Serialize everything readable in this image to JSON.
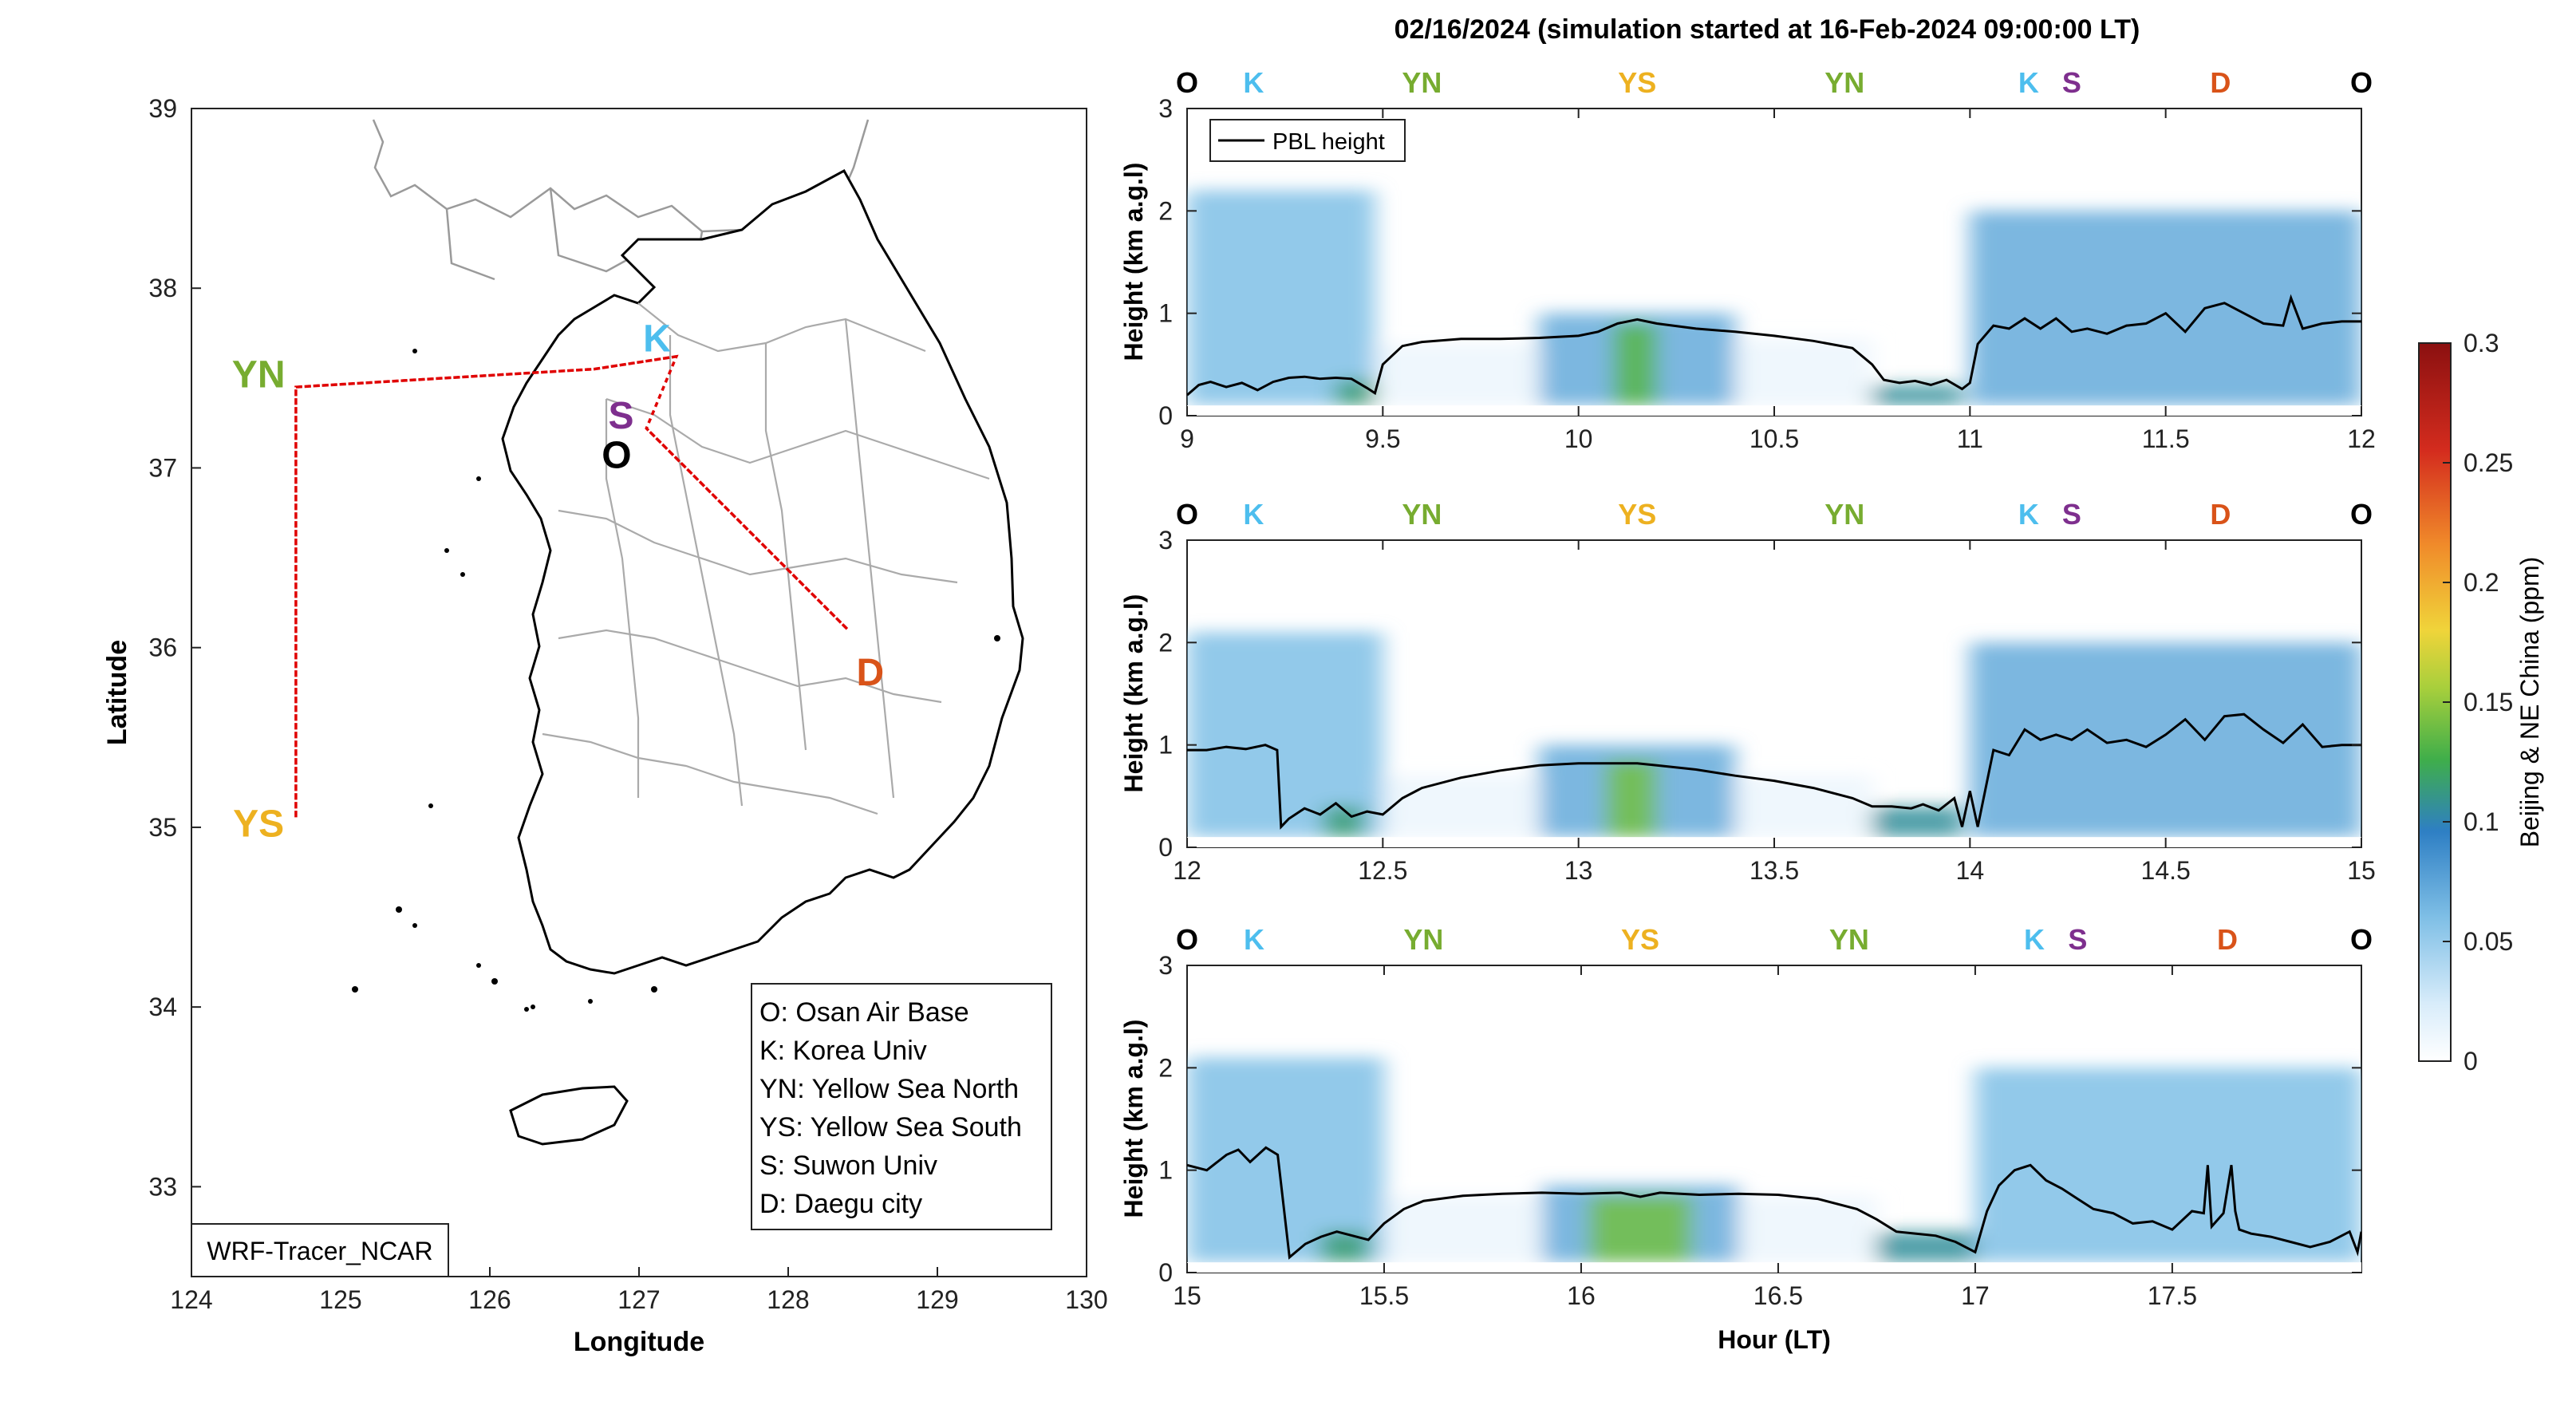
{
  "figure_title": "02/16/2024 (simulation started at 16-Feb-2024 09:00:00 LT)",
  "colors": {
    "O": "#000000",
    "K": "#4DBEEE",
    "YN": "#77AC30",
    "YS": "#EDB120",
    "S": "#7E2F8E",
    "D": "#D95319",
    "track": "#E00000"
  },
  "chart_data": [
    {
      "type": "map",
      "xlabel": "Longitude",
      "ylabel": "Latitude",
      "xlim": [
        124,
        130
      ],
      "ylim": [
        32.5,
        39
      ],
      "xticks": [
        124,
        125,
        126,
        127,
        128,
        129,
        130
      ],
      "yticks": [
        33,
        34,
        35,
        36,
        37,
        38,
        39
      ],
      "watermark": "WRF-Tracer_NCAR",
      "sites": [
        {
          "code": "O",
          "lon": 126.85,
          "lat": 37.07
        },
        {
          "code": "K",
          "lon": 127.12,
          "lat": 37.72
        },
        {
          "code": "S",
          "lon": 126.88,
          "lat": 37.29
        },
        {
          "code": "YN",
          "lon": 124.45,
          "lat": 37.52
        },
        {
          "code": "YS",
          "lon": 124.45,
          "lat": 35.02
        },
        {
          "code": "D",
          "lon": 128.55,
          "lat": 35.86
        }
      ],
      "flight_track": [
        {
          "lon": 127.25,
          "lat": 37.62
        },
        {
          "lon": 126.7,
          "lat": 37.55
        },
        {
          "lon": 124.7,
          "lat": 37.45
        },
        {
          "lon": 124.7,
          "lat": 35.05
        },
        {
          "lon": 124.7,
          "lat": 37.45
        },
        {
          "lon": 126.7,
          "lat": 37.55
        },
        {
          "lon": 127.25,
          "lat": 37.62
        },
        {
          "lon": 127.05,
          "lat": 37.22
        },
        {
          "lon": 128.4,
          "lat": 36.1
        },
        {
          "lon": 127.05,
          "lat": 37.22
        }
      ],
      "legend": [
        "O: Osan Air Base",
        "K: Korea Univ",
        "YN: Yellow Sea North",
        "YS: Yellow Sea South",
        "S: Suwon Univ",
        "D: Daegu city"
      ]
    },
    {
      "type": "heatmap",
      "xlabel": "",
      "ylabel": "Height (km a.g.l)",
      "xlim": [
        9,
        12
      ],
      "ylim": [
        0,
        3
      ],
      "xticks": [
        9,
        9.5,
        10,
        10.5,
        11,
        11.5,
        12
      ],
      "yticks": [
        0,
        1,
        2,
        3
      ],
      "legend": "PBL height",
      "site_markers": [
        {
          "code": "O",
          "x": 9.0
        },
        {
          "code": "K",
          "x": 9.17
        },
        {
          "code": "YN",
          "x": 9.6
        },
        {
          "code": "YS",
          "x": 10.15
        },
        {
          "code": "YN",
          "x": 10.68
        },
        {
          "code": "K",
          "x": 11.15
        },
        {
          "code": "S",
          "x": 11.26
        },
        {
          "code": "D",
          "x": 11.64
        },
        {
          "code": "O",
          "x": 12.0
        }
      ],
      "pbl_height": {
        "x": [
          9.0,
          9.03,
          9.06,
          9.1,
          9.14,
          9.18,
          9.22,
          9.26,
          9.3,
          9.34,
          9.38,
          9.42,
          9.46,
          9.48,
          9.5,
          9.55,
          9.6,
          9.7,
          9.8,
          9.9,
          10.0,
          10.05,
          10.1,
          10.15,
          10.2,
          10.3,
          10.4,
          10.5,
          10.6,
          10.7,
          10.75,
          10.78,
          10.82,
          10.86,
          10.9,
          10.94,
          10.98,
          11.0,
          11.02,
          11.06,
          11.1,
          11.14,
          11.18,
          11.22,
          11.26,
          11.3,
          11.35,
          11.4,
          11.45,
          11.5,
          11.55,
          11.6,
          11.65,
          11.7,
          11.75,
          11.8,
          11.82,
          11.85,
          11.9,
          11.95,
          12.0
        ],
        "y": [
          0.2,
          0.3,
          0.33,
          0.28,
          0.32,
          0.25,
          0.33,
          0.37,
          0.38,
          0.36,
          0.37,
          0.36,
          0.27,
          0.22,
          0.5,
          0.68,
          0.72,
          0.75,
          0.75,
          0.76,
          0.78,
          0.82,
          0.9,
          0.94,
          0.9,
          0.85,
          0.82,
          0.78,
          0.73,
          0.66,
          0.5,
          0.35,
          0.32,
          0.34,
          0.3,
          0.35,
          0.26,
          0.32,
          0.7,
          0.88,
          0.85,
          0.95,
          0.85,
          0.95,
          0.82,
          0.85,
          0.8,
          0.88,
          0.9,
          1.0,
          0.82,
          1.05,
          1.1,
          1.0,
          0.9,
          0.88,
          1.15,
          0.85,
          0.9,
          0.92,
          0.92
        ]
      },
      "concentration_bands": [
        {
          "x0": 9.0,
          "x1": 9.48,
          "top_km": 2.2,
          "ppm": 0.05
        },
        {
          "x0": 9.38,
          "x1": 9.48,
          "top_km": 0.35,
          "ppm": 0.1
        },
        {
          "x0": 9.48,
          "x1": 9.9,
          "top_km": 0.7,
          "ppm": 0.01
        },
        {
          "x0": 9.9,
          "x1": 10.4,
          "top_km": 1.0,
          "ppm": 0.06
        },
        {
          "x0": 10.09,
          "x1": 10.2,
          "top_km": 0.9,
          "ppm": 0.12
        },
        {
          "x0": 10.4,
          "x1": 10.75,
          "top_km": 0.75,
          "ppm": 0.01
        },
        {
          "x0": 10.75,
          "x1": 10.98,
          "top_km": 0.3,
          "ppm": 0.09
        },
        {
          "x0": 11.0,
          "x1": 12.0,
          "top_km": 2.0,
          "ppm": 0.06
        }
      ]
    },
    {
      "type": "heatmap",
      "xlabel": "",
      "ylabel": "Height (km a.g.l)",
      "xlim": [
        12,
        15
      ],
      "ylim": [
        0,
        3
      ],
      "xticks": [
        12,
        12.5,
        13,
        13.5,
        14,
        14.5,
        15
      ],
      "yticks": [
        0,
        1,
        2,
        3
      ],
      "site_markers": [
        {
          "code": "O",
          "x": 12.0
        },
        {
          "code": "K",
          "x": 12.17
        },
        {
          "code": "YN",
          "x": 12.6
        },
        {
          "code": "YS",
          "x": 13.15
        },
        {
          "code": "YN",
          "x": 13.68
        },
        {
          "code": "K",
          "x": 14.15
        },
        {
          "code": "S",
          "x": 14.26
        },
        {
          "code": "D",
          "x": 14.64
        },
        {
          "code": "O",
          "x": 15.0
        }
      ],
      "pbl_height": {
        "x": [
          12.0,
          12.05,
          12.1,
          12.15,
          12.2,
          12.23,
          12.24,
          12.26,
          12.3,
          12.34,
          12.38,
          12.42,
          12.46,
          12.5,
          12.55,
          12.6,
          12.7,
          12.8,
          12.9,
          13.0,
          13.1,
          13.15,
          13.2,
          13.3,
          13.4,
          13.5,
          13.6,
          13.7,
          13.75,
          13.8,
          13.85,
          13.88,
          13.92,
          13.96,
          13.98,
          14.0,
          14.02,
          14.06,
          14.1,
          14.14,
          14.18,
          14.22,
          14.26,
          14.3,
          14.35,
          14.4,
          14.45,
          14.5,
          14.55,
          14.6,
          14.65,
          14.7,
          14.75,
          14.8,
          14.85,
          14.9,
          14.95,
          15.0
        ],
        "y": [
          0.95,
          0.95,
          0.98,
          0.96,
          1.0,
          0.95,
          0.2,
          0.28,
          0.38,
          0.32,
          0.43,
          0.3,
          0.35,
          0.32,
          0.48,
          0.58,
          0.68,
          0.75,
          0.8,
          0.82,
          0.82,
          0.82,
          0.8,
          0.76,
          0.7,
          0.65,
          0.58,
          0.48,
          0.4,
          0.4,
          0.38,
          0.42,
          0.36,
          0.48,
          0.2,
          0.55,
          0.2,
          0.95,
          0.9,
          1.15,
          1.05,
          1.1,
          1.05,
          1.15,
          1.02,
          1.05,
          0.98,
          1.1,
          1.25,
          1.05,
          1.28,
          1.3,
          1.15,
          1.02,
          1.2,
          0.98,
          1.0,
          1.0
        ]
      },
      "concentration_bands": [
        {
          "x0": 12.0,
          "x1": 12.5,
          "top_km": 2.1,
          "ppm": 0.05
        },
        {
          "x0": 12.35,
          "x1": 12.45,
          "top_km": 0.4,
          "ppm": 0.1
        },
        {
          "x0": 12.5,
          "x1": 12.9,
          "top_km": 0.7,
          "ppm": 0.01
        },
        {
          "x0": 12.9,
          "x1": 13.4,
          "top_km": 1.0,
          "ppm": 0.06
        },
        {
          "x0": 13.07,
          "x1": 13.2,
          "top_km": 0.85,
          "ppm": 0.13
        },
        {
          "x0": 13.4,
          "x1": 13.75,
          "top_km": 0.7,
          "ppm": 0.01
        },
        {
          "x0": 13.75,
          "x1": 13.98,
          "top_km": 0.4,
          "ppm": 0.09
        },
        {
          "x0": 14.0,
          "x1": 15.0,
          "top_km": 2.0,
          "ppm": 0.06
        }
      ]
    },
    {
      "type": "heatmap",
      "xlabel": "Hour (LT)",
      "ylabel": "Height (km a.g.l)",
      "xlim": [
        15,
        17.98
      ],
      "ylim": [
        0,
        3
      ],
      "xticks": [
        15,
        15.5,
        16,
        16.5,
        17,
        17.5
      ],
      "yticks": [
        0,
        1,
        2,
        3
      ],
      "site_markers": [
        {
          "code": "O",
          "x": 15.0
        },
        {
          "code": "K",
          "x": 15.17
        },
        {
          "code": "YN",
          "x": 15.6
        },
        {
          "code": "YS",
          "x": 16.15
        },
        {
          "code": "YN",
          "x": 16.68
        },
        {
          "code": "K",
          "x": 17.15
        },
        {
          "code": "S",
          "x": 17.26
        },
        {
          "code": "D",
          "x": 17.64
        },
        {
          "code": "O",
          "x": 17.98
        }
      ],
      "pbl_height": {
        "x": [
          15.0,
          15.05,
          15.1,
          15.13,
          15.16,
          15.2,
          15.23,
          15.26,
          15.3,
          15.34,
          15.38,
          15.42,
          15.46,
          15.5,
          15.55,
          15.6,
          15.7,
          15.8,
          15.9,
          16.0,
          16.1,
          16.15,
          16.2,
          16.3,
          16.4,
          16.5,
          16.6,
          16.7,
          16.75,
          16.8,
          16.85,
          16.9,
          16.95,
          17.0,
          17.03,
          17.06,
          17.1,
          17.14,
          17.18,
          17.22,
          17.26,
          17.3,
          17.35,
          17.4,
          17.45,
          17.5,
          17.55,
          17.58,
          17.59,
          17.6,
          17.63,
          17.65,
          17.66,
          17.67,
          17.7,
          17.75,
          17.8,
          17.85,
          17.9,
          17.95,
          17.97,
          17.98
        ],
        "y": [
          1.05,
          1.0,
          1.15,
          1.2,
          1.08,
          1.22,
          1.15,
          0.15,
          0.28,
          0.35,
          0.4,
          0.36,
          0.32,
          0.48,
          0.62,
          0.7,
          0.75,
          0.77,
          0.78,
          0.77,
          0.78,
          0.74,
          0.78,
          0.76,
          0.77,
          0.76,
          0.72,
          0.62,
          0.52,
          0.4,
          0.38,
          0.36,
          0.3,
          0.2,
          0.6,
          0.85,
          1.0,
          1.05,
          0.9,
          0.82,
          0.72,
          0.62,
          0.58,
          0.48,
          0.5,
          0.42,
          0.6,
          0.58,
          1.05,
          0.45,
          0.58,
          1.05,
          0.6,
          0.42,
          0.38,
          0.35,
          0.3,
          0.25,
          0.3,
          0.4,
          0.2,
          0.4
        ]
      },
      "concentration_bands": [
        {
          "x0": 15.0,
          "x1": 15.5,
          "top_km": 2.1,
          "ppm": 0.05
        },
        {
          "x0": 15.34,
          "x1": 15.46,
          "top_km": 0.4,
          "ppm": 0.1
        },
        {
          "x0": 15.5,
          "x1": 15.9,
          "top_km": 0.75,
          "ppm": 0.01
        },
        {
          "x0": 15.9,
          "x1": 16.4,
          "top_km": 0.85,
          "ppm": 0.06
        },
        {
          "x0": 16.02,
          "x1": 16.28,
          "top_km": 0.75,
          "ppm": 0.13
        },
        {
          "x0": 16.4,
          "x1": 16.75,
          "top_km": 0.75,
          "ppm": 0.01
        },
        {
          "x0": 16.75,
          "x1": 17.0,
          "top_km": 0.4,
          "ppm": 0.09
        },
        {
          "x0": 17.0,
          "x1": 17.98,
          "top_km": 2.0,
          "ppm": 0.05
        }
      ]
    }
  ],
  "colorbar": {
    "label": "Beijing & NE China (ppm)",
    "min": 0,
    "max": 0.3,
    "ticks": [
      0,
      0.05,
      0.1,
      0.15,
      0.2,
      0.25,
      0.3
    ]
  }
}
